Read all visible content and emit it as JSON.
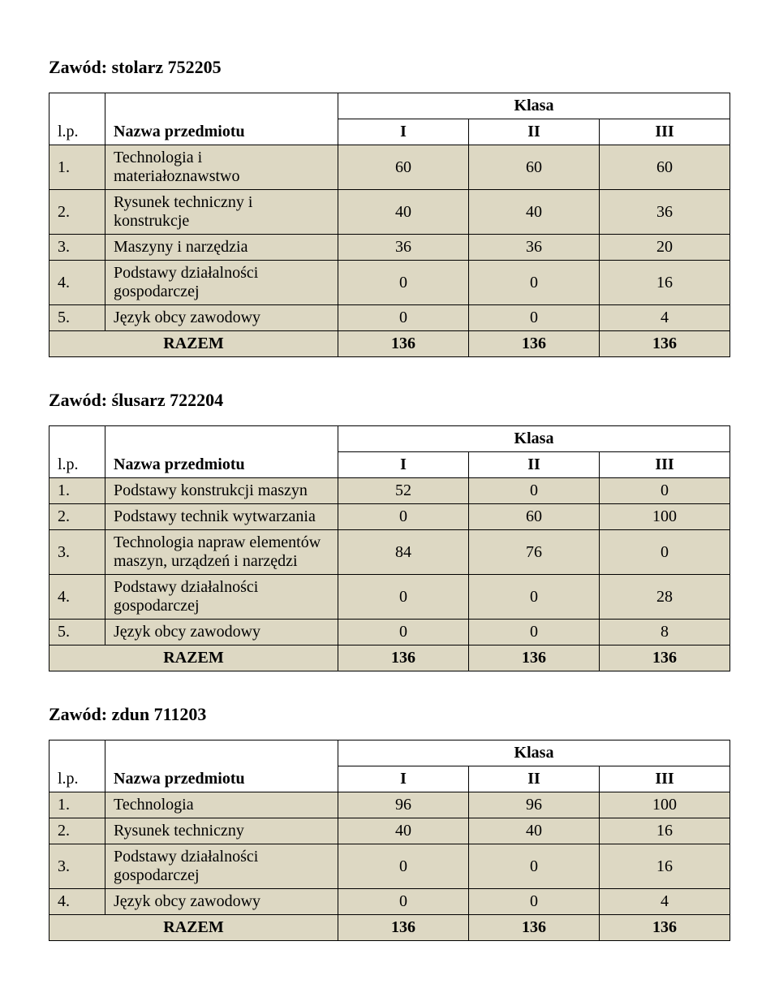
{
  "colors": {
    "row_bg": "#ddd8c3",
    "border": "#000000",
    "text": "#000000",
    "page_bg": "#ffffff"
  },
  "typography": {
    "font_family": "Times New Roman",
    "body_fontsize_pt": 15,
    "title_fontsize_pt": 16
  },
  "layout": {
    "col_widths_pct": [
      6,
      52,
      14,
      14,
      14
    ]
  },
  "common": {
    "klasa_label": "Klasa",
    "lp_label": "l.p.",
    "name_label": "Nazwa przedmiotu",
    "col_I": "I",
    "col_II": "II",
    "col_III": "III",
    "razem_label": "RAZEM"
  },
  "sections": [
    {
      "title": "Zawód: stolarz 752205",
      "rows": [
        {
          "lp": "1.",
          "name": "Technologia i materiałoznawstwo",
          "v": [
            "60",
            "60",
            "60"
          ]
        },
        {
          "lp": "2.",
          "name": "Rysunek techniczny i konstrukcje",
          "v": [
            "40",
            "40",
            "36"
          ]
        },
        {
          "lp": "3.",
          "name": "Maszyny i narzędzia",
          "v": [
            "36",
            "36",
            "20"
          ]
        },
        {
          "lp": "4.",
          "name": "Podstawy działalności gospodarczej",
          "v": [
            "0",
            "0",
            "16"
          ]
        },
        {
          "lp": "5.",
          "name": "Język obcy zawodowy",
          "v": [
            "0",
            "0",
            "4"
          ]
        }
      ],
      "razem": [
        "136",
        "136",
        "136"
      ]
    },
    {
      "title": "Zawód: ślusarz 722204",
      "rows": [
        {
          "lp": "1.",
          "name": "Podstawy konstrukcji maszyn",
          "v": [
            "52",
            "0",
            "0"
          ]
        },
        {
          "lp": "2.",
          "name": "Podstawy technik wytwarzania",
          "v": [
            "0",
            "60",
            "100"
          ]
        },
        {
          "lp": "3.",
          "name": "Technologia napraw elementów maszyn, urządzeń i narzędzi",
          "v": [
            "84",
            "76",
            "0"
          ]
        },
        {
          "lp": "4.",
          "name": "Podstawy działalności gospodarczej",
          "v": [
            "0",
            "0",
            "28"
          ]
        },
        {
          "lp": "5.",
          "name": "Język obcy zawodowy",
          "v": [
            "0",
            "0",
            "8"
          ]
        }
      ],
      "razem": [
        "136",
        "136",
        "136"
      ]
    },
    {
      "title": "Zawód: zdun 711203",
      "rows": [
        {
          "lp": "1.",
          "name": "Technologia",
          "v": [
            "96",
            "96",
            "100"
          ]
        },
        {
          "lp": "2.",
          "name": "Rysunek techniczny",
          "v": [
            "40",
            "40",
            "16"
          ]
        },
        {
          "lp": "3.",
          "name": "Podstawy działalności gospodarczej",
          "v": [
            "0",
            "0",
            "16"
          ]
        },
        {
          "lp": "4.",
          "name": "Język obcy zawodowy",
          "v": [
            "0",
            "0",
            "4"
          ]
        }
      ],
      "razem": [
        "136",
        "136",
        "136"
      ]
    }
  ]
}
